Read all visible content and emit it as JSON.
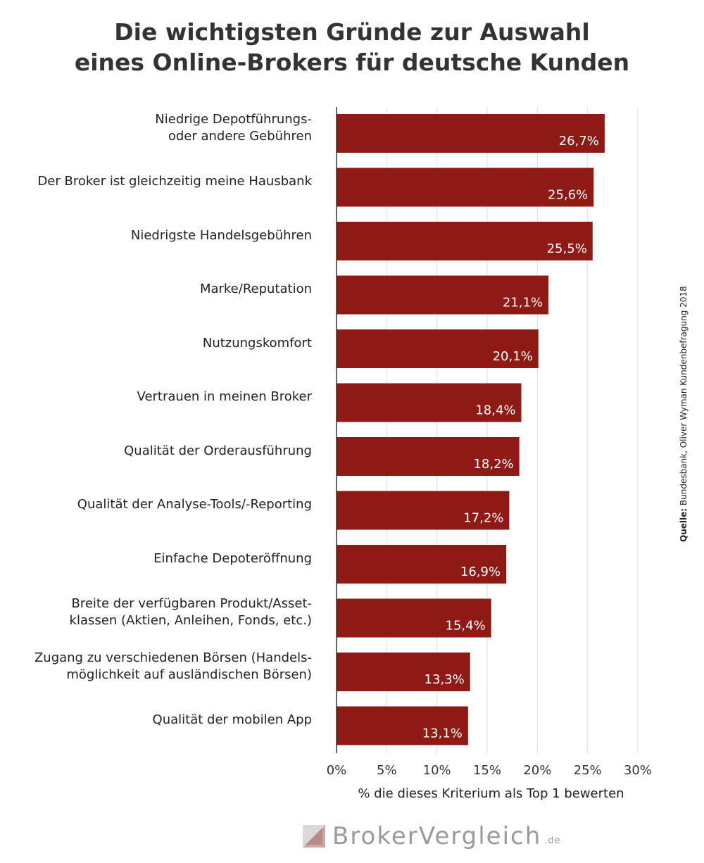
{
  "title_lines": [
    "Die wichtigsten Gründe zur Auswahl",
    "eines Online-Brokers für deutsche Kunden"
  ],
  "source": {
    "label": "Quelle:",
    "text": "Bundesbank, Oliver Wyman Kundenbefragung 2018"
  },
  "brand": {
    "name": "BrokerVergleich",
    "suffix": ".de"
  },
  "colors": {
    "bar": "#8f1915",
    "bar_label": "#ffffff",
    "grid": "#dddddd",
    "axis": "#333333",
    "brand_grey": "#9a9a9a"
  },
  "chart_data": {
    "type": "bar",
    "orientation": "horizontal",
    "categories": [
      [
        "Niedrige Depotführungs-",
        "oder andere Gebühren"
      ],
      [
        "Der Broker ist gleichzeitig meine Hausbank"
      ],
      [
        "Niedrigste Handelsgebühren"
      ],
      [
        "Marke/Reputation"
      ],
      [
        "Nutzungskomfort"
      ],
      [
        "Vertrauen in meinen Broker"
      ],
      [
        "Qualität der Orderausführung"
      ],
      [
        "Qualität der Analyse-Tools/-Reporting"
      ],
      [
        "Einfache Depoteröffnung"
      ],
      [
        "Breite der verfügbaren Produkt/Asset-",
        "klassen (Aktien, Anleihen, Fonds, etc.)"
      ],
      [
        "Zugang zu verschiedenen Börsen (Handels-",
        "möglichkeit auf ausländischen Börsen)"
      ],
      [
        "Qualität der mobilen App"
      ]
    ],
    "values": [
      26.7,
      25.6,
      25.5,
      21.1,
      20.1,
      18.4,
      18.2,
      17.2,
      16.9,
      15.4,
      13.3,
      13.1
    ],
    "value_labels": [
      "26,7%",
      "25,6%",
      "25,5%",
      "21,1%",
      "20,1%",
      "18,4%",
      "18,2%",
      "17,2%",
      "16,9%",
      "15,4%",
      "13,3%",
      "13,1%"
    ],
    "xlabel": "% die dieses Kriterium als Top 1 bewerten",
    "xlim": [
      0,
      30
    ],
    "xticks": [
      0,
      5,
      10,
      15,
      20,
      25,
      30
    ],
    "xtick_labels": [
      "0%",
      "5%",
      "10%",
      "15%",
      "20%",
      "25%",
      "30%"
    ],
    "grid": true
  }
}
